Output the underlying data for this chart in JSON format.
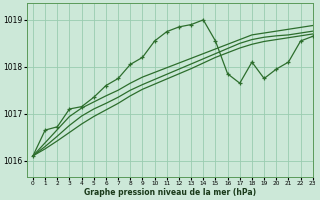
{
  "title": "Graphe pression niveau de la mer (hPa)",
  "bg_color": "#cce8d8",
  "grid_color": "#99ccb0",
  "line_color": "#2d6e2d",
  "xlim": [
    -0.5,
    23
  ],
  "ylim": [
    1015.65,
    1019.35
  ],
  "yticks": [
    1016,
    1017,
    1018,
    1019
  ],
  "ytick_labels": [
    "1016",
    "1017",
    "1018",
    "1019"
  ],
  "xticks": [
    0,
    1,
    2,
    3,
    4,
    5,
    6,
    7,
    8,
    9,
    10,
    11,
    12,
    13,
    14,
    15,
    16,
    17,
    18,
    19,
    20,
    21,
    22,
    23
  ],
  "series_main": [
    1016.1,
    1016.65,
    1016.72,
    1017.1,
    1017.15,
    1017.35,
    1017.6,
    1017.75,
    1018.05,
    1018.2,
    1018.55,
    1018.75,
    1018.85,
    1018.9,
    1019.0,
    1018.55,
    1017.85,
    1017.65,
    1018.1,
    1017.75,
    1017.95,
    1018.1,
    1018.55,
    1018.65
  ],
  "series_line1": [
    1016.1,
    1016.38,
    1016.66,
    1016.94,
    1017.12,
    1017.25,
    1017.38,
    1017.5,
    1017.65,
    1017.78,
    1017.88,
    1017.98,
    1018.08,
    1018.18,
    1018.28,
    1018.38,
    1018.48,
    1018.58,
    1018.68,
    1018.72,
    1018.76,
    1018.8,
    1018.84,
    1018.88
  ],
  "series_line2": [
    1016.1,
    1016.3,
    1016.52,
    1016.75,
    1016.95,
    1017.1,
    1017.22,
    1017.35,
    1017.5,
    1017.62,
    1017.73,
    1017.84,
    1017.95,
    1018.06,
    1018.17,
    1018.28,
    1018.39,
    1018.5,
    1018.58,
    1018.63,
    1018.66,
    1018.68,
    1018.72,
    1018.76
  ],
  "series_line3": [
    1016.1,
    1016.25,
    1016.42,
    1016.6,
    1016.78,
    1016.94,
    1017.08,
    1017.22,
    1017.38,
    1017.52,
    1017.63,
    1017.74,
    1017.85,
    1017.96,
    1018.08,
    1018.2,
    1018.3,
    1018.4,
    1018.48,
    1018.54,
    1018.58,
    1018.62,
    1018.66,
    1018.7
  ],
  "figsize": [
    3.2,
    2.0
  ],
  "dpi": 100
}
